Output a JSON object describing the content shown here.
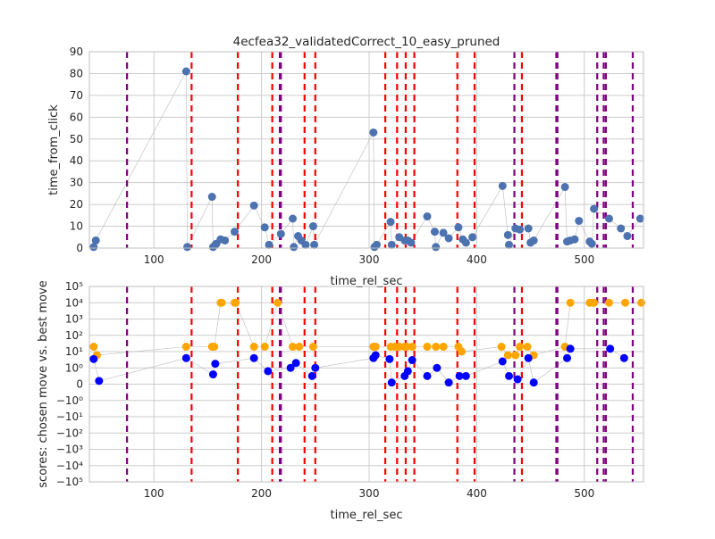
{
  "chart_data": [
    {
      "type": "scatter",
      "title": "4ecfea32_validatedCorrect_10_easy_pruned",
      "xlabel": "time_rel_sec",
      "ylabel": "time_from_click",
      "xlim": [
        40,
        555
      ],
      "ylim": [
        0,
        90
      ],
      "x_ticks": [
        "100",
        "200",
        "300",
        "400",
        "500"
      ],
      "x_tick_values": [
        100,
        200,
        300,
        400,
        500
      ],
      "y_ticks": [
        "0",
        "10",
        "20",
        "30",
        "40",
        "50",
        "60",
        "70",
        "80",
        "90"
      ],
      "y_tick_values": [
        0,
        10,
        20,
        30,
        40,
        50,
        60,
        70,
        80,
        90
      ],
      "grid": true,
      "series": [
        {
          "color": "#4C72B0",
          "x": [
            44,
            46,
            130,
            131,
            154,
            155,
            157,
            158,
            162,
            166,
            175,
            193,
            203,
            207,
            218,
            229,
            230,
            234,
            237,
            241,
            248,
            249,
            304,
            305,
            307,
            320,
            321,
            328,
            333,
            336,
            339,
            354,
            361,
            362,
            369,
            374,
            383,
            387,
            390,
            396,
            424,
            429,
            430,
            436,
            440,
            448,
            450,
            453,
            482,
            484,
            487,
            491,
            495,
            505,
            507,
            509,
            523,
            534,
            540,
            552
          ],
          "y": [
            0.5,
            3.5,
            81,
            0.5,
            23.5,
            0.5,
            1.5,
            2,
            4,
            3.5,
            7.5,
            19.5,
            9.5,
            1.5,
            6.5,
            13.5,
            0.5,
            5.5,
            3.5,
            1.5,
            10,
            1.5,
            53,
            0.5,
            1.5,
            12,
            1.5,
            5,
            3.5,
            3.5,
            2.5,
            14.5,
            7.5,
            0.5,
            7,
            4.5,
            9.5,
            4,
            2.5,
            5,
            28.5,
            6,
            1.5,
            9,
            8.5,
            9,
            2.5,
            3.5,
            28,
            3,
            3.5,
            4,
            12.5,
            3,
            2,
            18,
            13.5,
            9,
            5.5,
            13.5
          ]
        }
      ],
      "vlines": [
        {
          "color": "#800080",
          "x": [
            75,
            217,
            218,
            435,
            474,
            475,
            512,
            518,
            520,
            545
          ]
        },
        {
          "color": "#FF0000",
          "x": [
            135,
            178,
            210,
            240,
            250,
            315,
            326,
            334,
            342,
            382,
            398,
            442
          ]
        }
      ]
    },
    {
      "type": "scatter",
      "xlabel": "time_rel_sec",
      "ylabel": "scores: chosen move vs. best move",
      "yscale": "symlog",
      "xlim": [
        40,
        555
      ],
      "ylim": [
        -100000,
        100000
      ],
      "x_ticks": [
        "100",
        "200",
        "300",
        "400",
        "500"
      ],
      "x_tick_values": [
        100,
        200,
        300,
        400,
        500
      ],
      "y_ticks": [
        "10⁵",
        "10⁴",
        "10³",
        "10²",
        "10¹",
        "10⁰",
        "0",
        "−10⁰",
        "−10¹",
        "−10²",
        "−10³",
        "−10⁴",
        "−10⁵"
      ],
      "y_tick_values": [
        100000,
        10000,
        1000,
        100,
        10,
        1,
        0,
        -1,
        -10,
        -100,
        -1000,
        -10000,
        -100000
      ],
      "grid": true,
      "series": [
        {
          "color": "#FFA500",
          "x": [
            44,
            47,
            130,
            154,
            156,
            162,
            163,
            175,
            176,
            193,
            203,
            215,
            229,
            235,
            248,
            304,
            306,
            320,
            324,
            328,
            333,
            335,
            340,
            354,
            362,
            369,
            383,
            386,
            423,
            429,
            436,
            440,
            447,
            453,
            482,
            487,
            505,
            508,
            509,
            523,
            538,
            553
          ],
          "y": [
            20,
            6,
            20,
            20,
            20,
            10000,
            10000,
            10000,
            10000,
            20,
            20,
            10000,
            20,
            20,
            20,
            20,
            20,
            20,
            20,
            20,
            20,
            20,
            20,
            20,
            20,
            20,
            20,
            10,
            20,
            6,
            6,
            20,
            20,
            6,
            20,
            10000,
            10000,
            10000,
            10000,
            10000,
            10000,
            10000
          ]
        },
        {
          "color": "#0000FF",
          "x": [
            44,
            49,
            130,
            155,
            157,
            193,
            206,
            227,
            232,
            247,
            250,
            304,
            306,
            319,
            321,
            333,
            336,
            340,
            354,
            363,
            374,
            384,
            390,
            424,
            430,
            438,
            448,
            453,
            484,
            487,
            524,
            537
          ],
          "y": [
            3.5,
            0.2,
            4,
            0.6,
            1.8,
            4,
            0.8,
            1,
            2,
            0.5,
            1,
            4,
            6,
            3.5,
            0.1,
            0.5,
            0.8,
            3,
            0.5,
            1,
            0.1,
            0.5,
            0.5,
            2.5,
            0.5,
            0.3,
            4,
            0.1,
            4,
            15,
            15,
            4
          ]
        }
      ],
      "vlines": [
        {
          "color": "#800080",
          "x": [
            75,
            217,
            218,
            435,
            474,
            475,
            512,
            518,
            520,
            545
          ]
        },
        {
          "color": "#FF0000",
          "x": [
            135,
            178,
            210,
            240,
            250,
            315,
            326,
            334,
            342,
            382,
            398,
            442
          ]
        }
      ]
    }
  ]
}
